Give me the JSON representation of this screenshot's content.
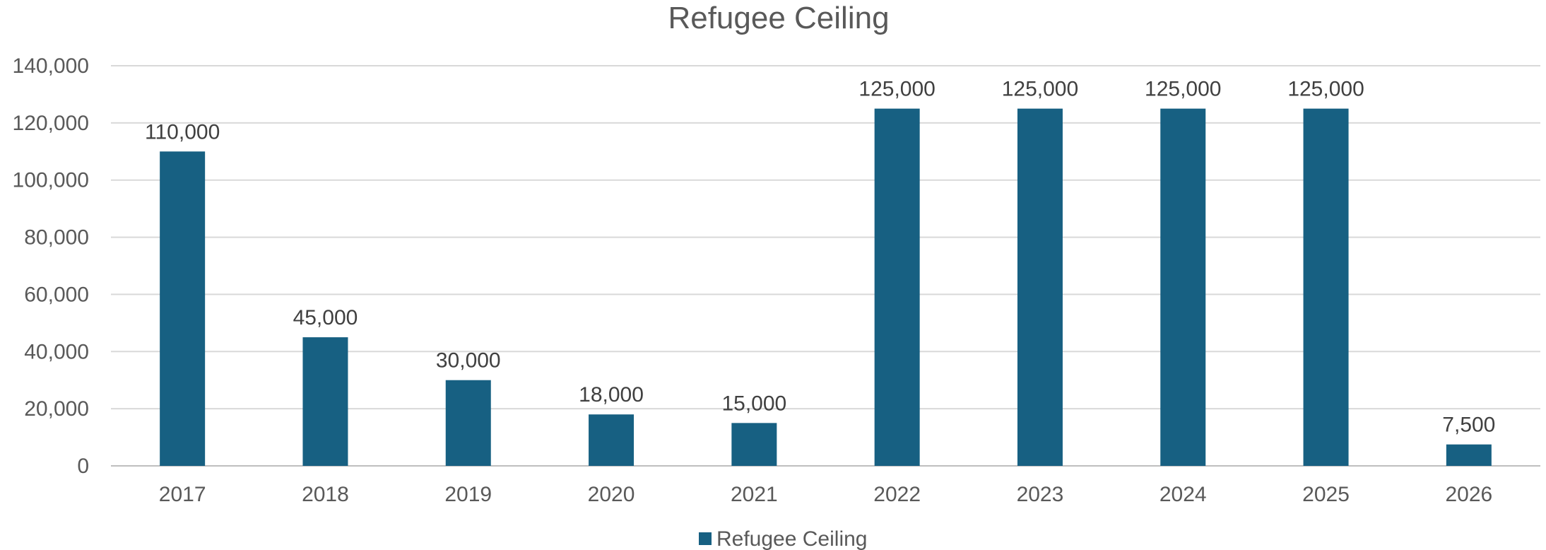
{
  "chart_data": {
    "type": "bar",
    "title": "Refugee Ceiling",
    "xlabel": "",
    "ylabel": "",
    "categories": [
      "2017",
      "2018",
      "2019",
      "2020",
      "2021",
      "2022",
      "2023",
      "2024",
      "2025",
      "2026"
    ],
    "series": [
      {
        "name": "Refugee Ceiling",
        "values": [
          110000,
          45000,
          30000,
          18000,
          15000,
          125000,
          125000,
          125000,
          125000,
          7500
        ],
        "data_labels": [
          "110,000",
          "45,000",
          "30,000",
          "18,000",
          "15,000",
          "125,000",
          "125,000",
          "125,000",
          "125,000",
          "7,500"
        ],
        "color": "#176082"
      }
    ],
    "ylim": [
      0,
      140000
    ],
    "y_ticks": [
      0,
      20000,
      40000,
      60000,
      80000,
      100000,
      120000,
      140000
    ],
    "y_tick_labels": [
      "0",
      "20,000",
      "40,000",
      "60,000",
      "80,000",
      "100,000",
      "120,000",
      "140,000"
    ],
    "grid": true,
    "legend": {
      "position": "bottom",
      "entries": [
        "Refugee Ceiling"
      ]
    },
    "colors": {
      "bar": "#176082",
      "gridline": "#d9d9d9",
      "axis_line": "#bfbfbf",
      "title_text": "#595959",
      "tick_text": "#595959",
      "data_label_text": "#404040"
    }
  }
}
